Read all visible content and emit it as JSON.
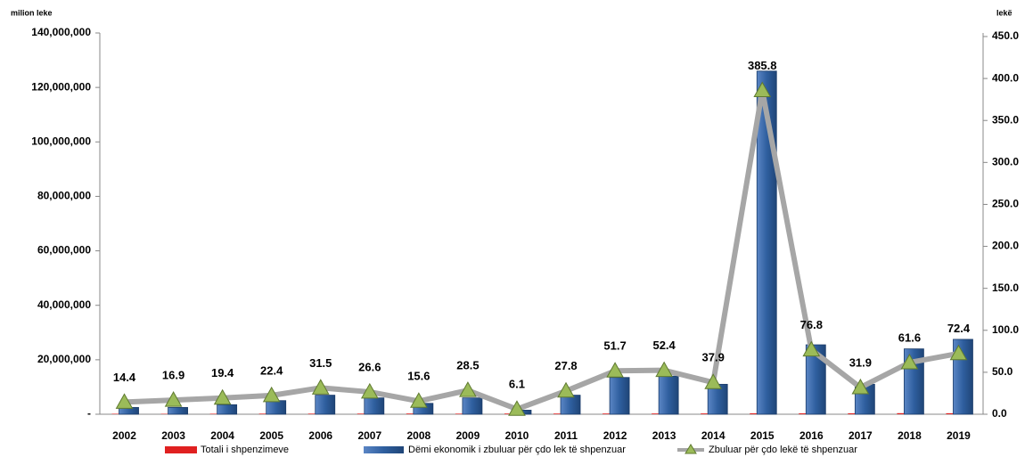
{
  "chart_data": {
    "type": "bar",
    "y_label": "milion leke",
    "y2_label": "lekë",
    "categories": [
      "2002",
      "2003",
      "2004",
      "2005",
      "2006",
      "2007",
      "2008",
      "2009",
      "2010",
      "2011",
      "2012",
      "2013",
      "2014",
      "2015",
      "2016",
      "2017",
      "2018",
      "2019"
    ],
    "series": [
      {
        "name": "Totali i shpenzimeve",
        "color": "#e02020",
        "type": "bar",
        "values": [
          170000,
          150000,
          180000,
          220000,
          220000,
          230000,
          260000,
          210000,
          250000,
          250000,
          260000,
          270000,
          290000,
          330000,
          330000,
          340000,
          390000,
          370000
        ]
      },
      {
        "name": "Dëmi ekonomik i zbuluar për çdo lek të shpenzuar",
        "color": "#2f5f9f",
        "type": "bar",
        "values": [
          2500000,
          2500000,
          3500000,
          5000000,
          7000000,
          6000000,
          4000000,
          6000000,
          1500000,
          7000000,
          13500000,
          14000000,
          11000000,
          126000000,
          25500000,
          11000000,
          24000000,
          27500000
        ]
      },
      {
        "name": "Zbuluar për çdo lekë të shpenzuar",
        "color": "#a6a6a6",
        "marker_color": "#9bbb59",
        "type": "line",
        "axis": "y2",
        "values": [
          14.4,
          16.9,
          19.4,
          22.4,
          31.5,
          26.6,
          15.6,
          28.5,
          6.1,
          27.8,
          51.7,
          52.4,
          37.9,
          385.8,
          76.8,
          31.9,
          61.6,
          72.4
        ]
      }
    ],
    "ylim": [
      0,
      140000000
    ],
    "yticks": [
      {
        "value": 0,
        "label": "-"
      },
      {
        "value": 20000000,
        "label": "20,000,000"
      },
      {
        "value": 40000000,
        "label": "40,000,000"
      },
      {
        "value": 60000000,
        "label": "60,000,000"
      },
      {
        "value": 80000000,
        "label": "80,000,000"
      },
      {
        "value": 100000000,
        "label": "100,000,000"
      },
      {
        "value": 120000000,
        "label": "120,000,000"
      },
      {
        "value": 140000000,
        "label": "140,000,000"
      }
    ],
    "y2lim": [
      0,
      450
    ],
    "y2ticks": [
      {
        "value": 0,
        "label": "0.0"
      },
      {
        "value": 50,
        "label": "50.0"
      },
      {
        "value": 100,
        "label": "100.0"
      },
      {
        "value": 150,
        "label": "150.0"
      },
      {
        "value": 200,
        "label": "200.0"
      },
      {
        "value": 250,
        "label": "250.0"
      },
      {
        "value": 300,
        "label": "300.0"
      },
      {
        "value": 350,
        "label": "350.0"
      },
      {
        "value": 400,
        "label": "400.0"
      },
      {
        "value": 450,
        "label": "450.0"
      }
    ],
    "legend": "bottom"
  }
}
